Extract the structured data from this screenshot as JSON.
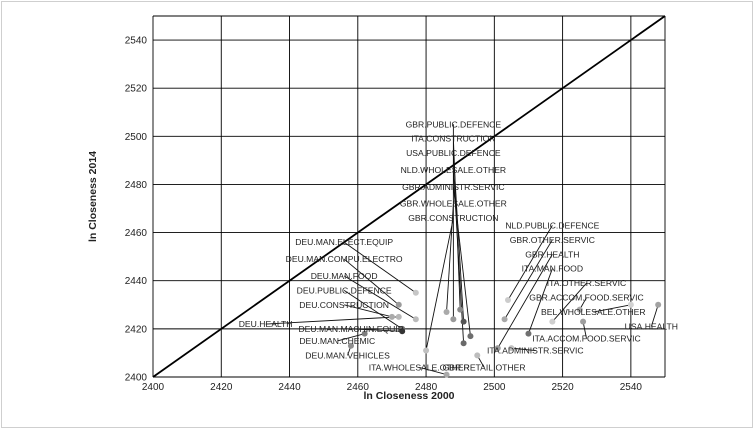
{
  "chart_data": {
    "type": "scatter",
    "title": "",
    "xlabel": "ln Closeness 2000",
    "ylabel": "ln Closeness 2014",
    "xlim": [
      2400,
      2550
    ],
    "ylim": [
      2400,
      2550
    ],
    "xticks": [
      2400,
      2420,
      2440,
      2460,
      2480,
      2500,
      2520,
      2540
    ],
    "yticks": [
      2400,
      2420,
      2440,
      2460,
      2480,
      2500,
      2520,
      2540
    ],
    "grid": true,
    "reference_line": "45-degree (x = y)",
    "points": [
      {
        "label": "GBR.PUBLIC.DEFENCE",
        "x": 2488,
        "y": 2424,
        "lx": 2488,
        "ly": 2505,
        "shade": "#9a9a9a"
      },
      {
        "label": "ITA.CONSTRUCTION",
        "x": 2490,
        "y": 2428,
        "lx": 2488,
        "ly": 2499,
        "shade": "#8a8a8a"
      },
      {
        "label": "USA.PUBLIC.DEFENCE",
        "x": 2491,
        "y": 2423,
        "lx": 2488,
        "ly": 2493,
        "shade": "#555555"
      },
      {
        "label": "NLD.WHOLESALE.OTHER",
        "x": 2491,
        "y": 2414,
        "lx": 2488,
        "ly": 2486,
        "shade": "#6a6a6a"
      },
      {
        "label": "GBR.ADMINISTR.SERVIC",
        "x": 2493,
        "y": 2417,
        "lx": 2488,
        "ly": 2479,
        "shade": "#6e6e6e"
      },
      {
        "label": "GBR.WHOLESALE.OTHER",
        "x": 2486,
        "y": 2427,
        "lx": 2488,
        "ly": 2472,
        "shade": "#aaaaaa"
      },
      {
        "label": "GBR.CONSTRUCTION",
        "x": 2480,
        "y": 2411,
        "lx": 2488,
        "ly": 2466,
        "shade": "#c0c0c0"
      },
      {
        "label": "DEU.MAN.ELECT.EQUIP",
        "x": 2477,
        "y": 2435,
        "lx": 2456,
        "ly": 2456,
        "shade": "#c6c6c6"
      },
      {
        "label": "DEU.MAN.COMPU.ELECTRO",
        "x": 2472,
        "y": 2430,
        "lx": 2456,
        "ly": 2449,
        "shade": "#9b9b9b"
      },
      {
        "label": "DEU.MAN.FOOD",
        "x": 2477,
        "y": 2424,
        "lx": 2456,
        "ly": 2442,
        "shade": "#bbbbbb"
      },
      {
        "label": "DEU.PUBLIC.DEFENCE",
        "x": 2473,
        "y": 2420,
        "lx": 2456,
        "ly": 2436,
        "shade": "#6a6a6a"
      },
      {
        "label": "DEU.CONSTRUCTION",
        "x": 2470,
        "y": 2425,
        "lx": 2456,
        "ly": 2430,
        "shade": "#aaaaaa"
      },
      {
        "label": "DEU.HEALTH",
        "x": 2472,
        "y": 2425,
        "lx": 2433,
        "ly": 2422,
        "shade": "#b7b7b7"
      },
      {
        "label": "DEU.MAN.MACHIN.EQUIP",
        "x": 2473,
        "y": 2419,
        "lx": 2458,
        "ly": 2420,
        "shade": "#333333"
      },
      {
        "label": "DEU.MAN.CHEMIC",
        "x": 2462,
        "y": 2418,
        "lx": 2454,
        "ly": 2415,
        "shade": "#7e7e7e"
      },
      {
        "label": "DEU.MAN.VEHICLES",
        "x": 2458,
        "y": 2413,
        "lx": 2457,
        "ly": 2409,
        "shade": "#8e8e8e"
      },
      {
        "label": "ITA.WHOLESALE.OTHER",
        "x": 2486,
        "y": 2401,
        "lx": 2478,
        "ly": 2404,
        "shade": "#aaaaaa"
      },
      {
        "label": "GBR.RETAIL.OTHER",
        "x": 2495,
        "y": 2409,
        "lx": 2497,
        "ly": 2404,
        "shade": "#bdbdbd"
      },
      {
        "label": "NLD.PUBLIC.DEFENCE",
        "x": 2504,
        "y": 2432,
        "lx": 2517,
        "ly": 2463,
        "shade": "#cccccc"
      },
      {
        "label": "GBR.OTHER.SERVIC",
        "x": 2503,
        "y": 2424,
        "lx": 2517,
        "ly": 2457,
        "shade": "#a8a8a8"
      },
      {
        "label": "GBR.HEALTH",
        "x": 2501,
        "y": 2412,
        "lx": 2517,
        "ly": 2451,
        "shade": "#9a9a9a"
      },
      {
        "label": "ITA.MAN.FOOD",
        "x": 2510,
        "y": 2418,
        "lx": 2517,
        "ly": 2445,
        "shade": "#707070"
      },
      {
        "label": "ITA.OTHER.SERVIC",
        "x": 2517,
        "y": 2423,
        "lx": 2527,
        "ly": 2439,
        "shade": "#cfcfcf"
      },
      {
        "label": "GBR.ACCOM.FOOD.SERVIC",
        "x": 2525,
        "y": 2428,
        "lx": 2527,
        "ly": 2433,
        "shade": "#aaaaaa"
      },
      {
        "label": "BEL.WHOLESALE.OTHER",
        "x": 2540,
        "y": 2430,
        "lx": 2529,
        "ly": 2427,
        "shade": "#d2d2d2"
      },
      {
        "label": "USA.HEALTH",
        "x": 2548,
        "y": 2430,
        "lx": 2546,
        "ly": 2421,
        "shade": "#a2a2a2"
      },
      {
        "label": "ITA.ACCOM.FOOD.SERVIC",
        "x": 2526,
        "y": 2423,
        "lx": 2527,
        "ly": 2416,
        "shade": "#9e9e9e"
      },
      {
        "label": "ITA.ADMINISTR.SERVIC",
        "x": 2505,
        "y": 2412,
        "lx": 2512,
        "ly": 2411,
        "shade": "#c3c3c3"
      }
    ]
  }
}
